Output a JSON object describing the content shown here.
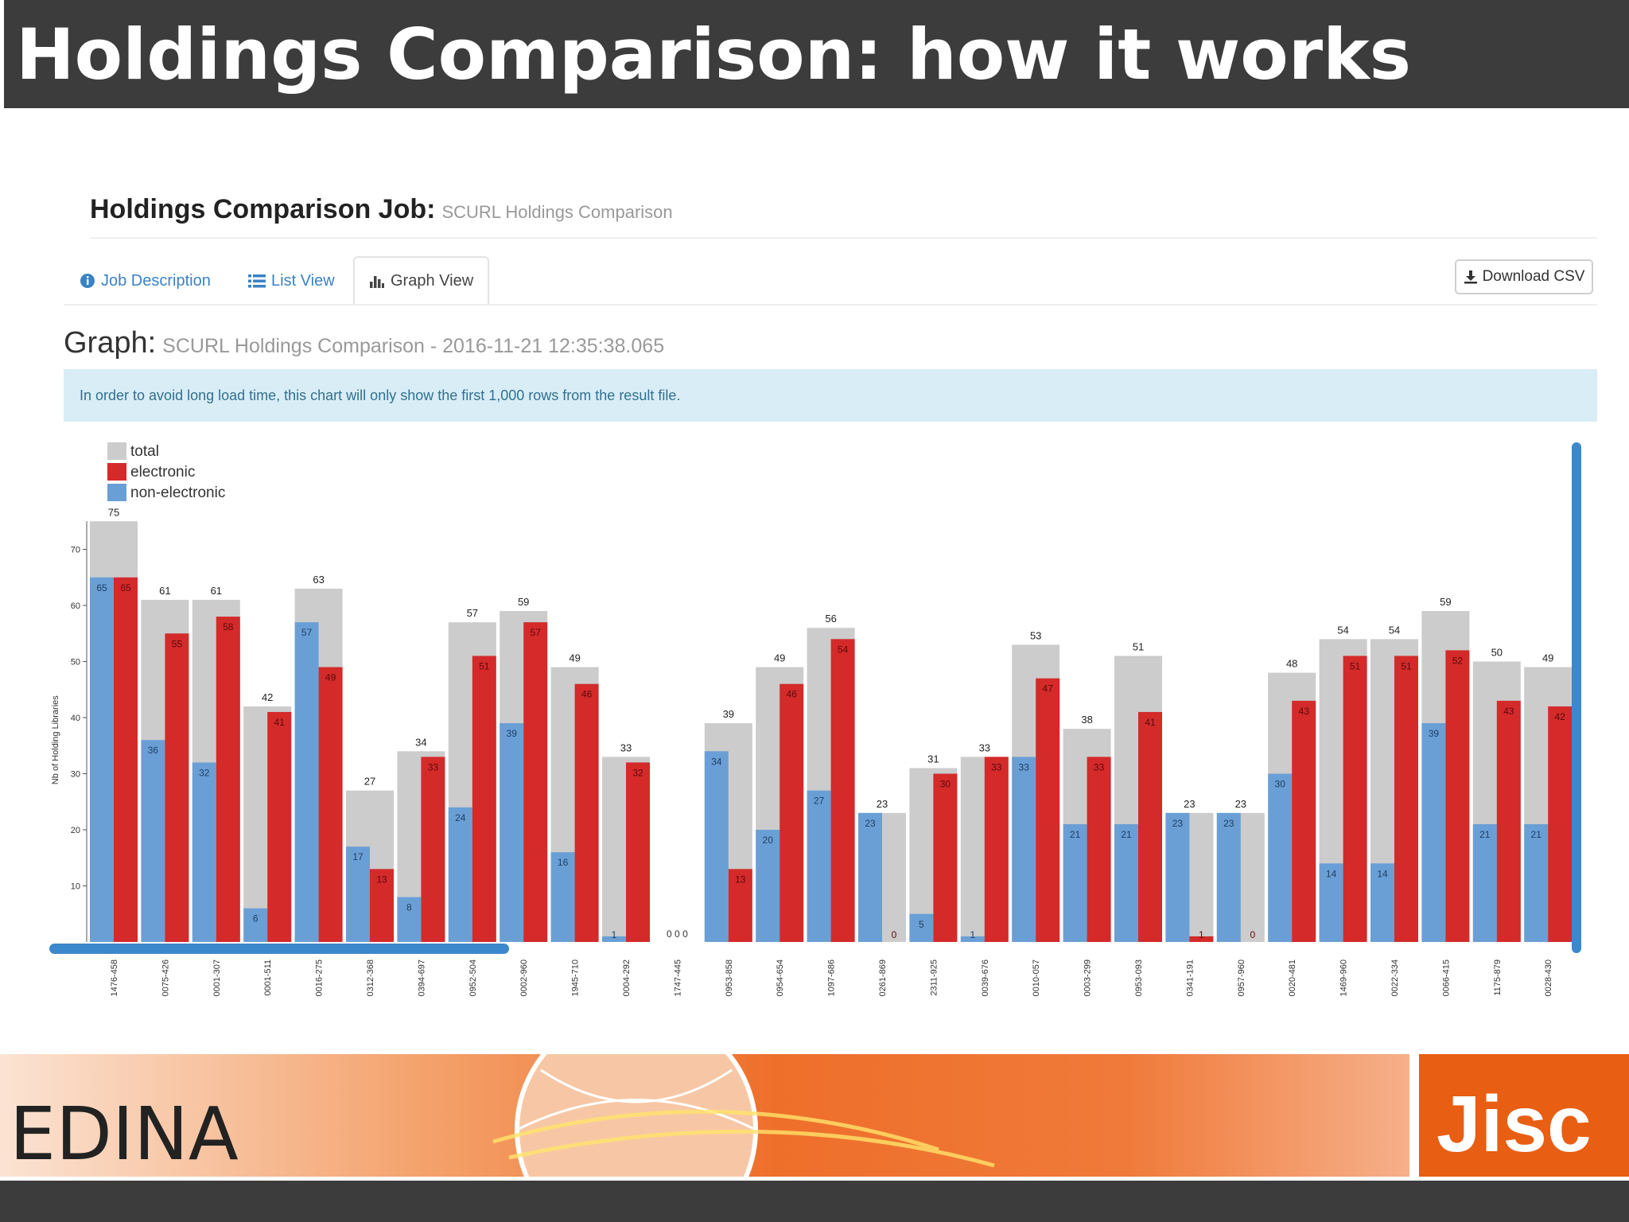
{
  "slide": {
    "title": "Holdings Comparison: how it works"
  },
  "page": {
    "job_label": "Holdings Comparison Job:",
    "job_name": "SCURL Holdings Comparison",
    "tabs": [
      {
        "label": "Job Description",
        "icon": "info-circle-icon",
        "active": false
      },
      {
        "label": "List View",
        "icon": "list-icon",
        "active": false
      },
      {
        "label": "Graph View",
        "icon": "bar-chart-icon",
        "active": true
      }
    ],
    "download_label": "Download CSV",
    "graph_label": "Graph:",
    "graph_subtitle": "SCURL Holdings Comparison - 2016-11-21 12:35:38.065",
    "info_message": "In order to avoid long load time, this chart will only show the first 1,000 rows from the result file."
  },
  "chart_data": {
    "type": "bar",
    "ylabel": "Nb of Holding Libraries",
    "ylim": [
      0,
      75
    ],
    "yticks": [
      10,
      20,
      30,
      40,
      50,
      60,
      70
    ],
    "legend_position": "top-left",
    "categories": [
      "1476-458",
      "0075-426",
      "0001-307",
      "0001-511",
      "0016-275",
      "0312-368",
      "0394-697",
      "0952-504",
      "0002-960",
      "1945-710",
      "0004-292",
      "1747-445",
      "0953-858",
      "0954-654",
      "1097-686",
      "0261-869",
      "2311-925",
      "0039-676",
      "0010-057",
      "0003-299",
      "0953-093",
      "0341-191",
      "0957-960",
      "0020-481",
      "1469-960",
      "0022-334",
      "0066-415",
      "1175-879",
      "0028-430"
    ],
    "series": [
      {
        "name": "total",
        "color": "#cccccc",
        "values": [
          75,
          61,
          61,
          42,
          63,
          27,
          34,
          57,
          59,
          49,
          33,
          0,
          39,
          49,
          56,
          23,
          31,
          33,
          53,
          38,
          51,
          23,
          23,
          48,
          54,
          54,
          59,
          50,
          49
        ]
      },
      {
        "name": "electronic",
        "color": "#d42a2a",
        "values": [
          65,
          55,
          58,
          41,
          49,
          13,
          33,
          51,
          57,
          46,
          32,
          0,
          13,
          46,
          54,
          0,
          30,
          33,
          47,
          33,
          41,
          1,
          0,
          43,
          51,
          51,
          52,
          43,
          42
        ]
      },
      {
        "name": "non-electronic",
        "color": "#6a9fd6",
        "values": [
          65,
          36,
          32,
          6,
          57,
          17,
          8,
          24,
          39,
          16,
          1,
          0,
          34,
          20,
          27,
          23,
          5,
          1,
          33,
          21,
          21,
          23,
          23,
          30,
          14,
          14,
          39,
          21,
          21
        ]
      }
    ]
  },
  "footer": {
    "logo_left": "EDINA",
    "logo_right": "Jisc",
    "band_color": "#ef7a2e",
    "jisc_color": "#e85e13"
  }
}
